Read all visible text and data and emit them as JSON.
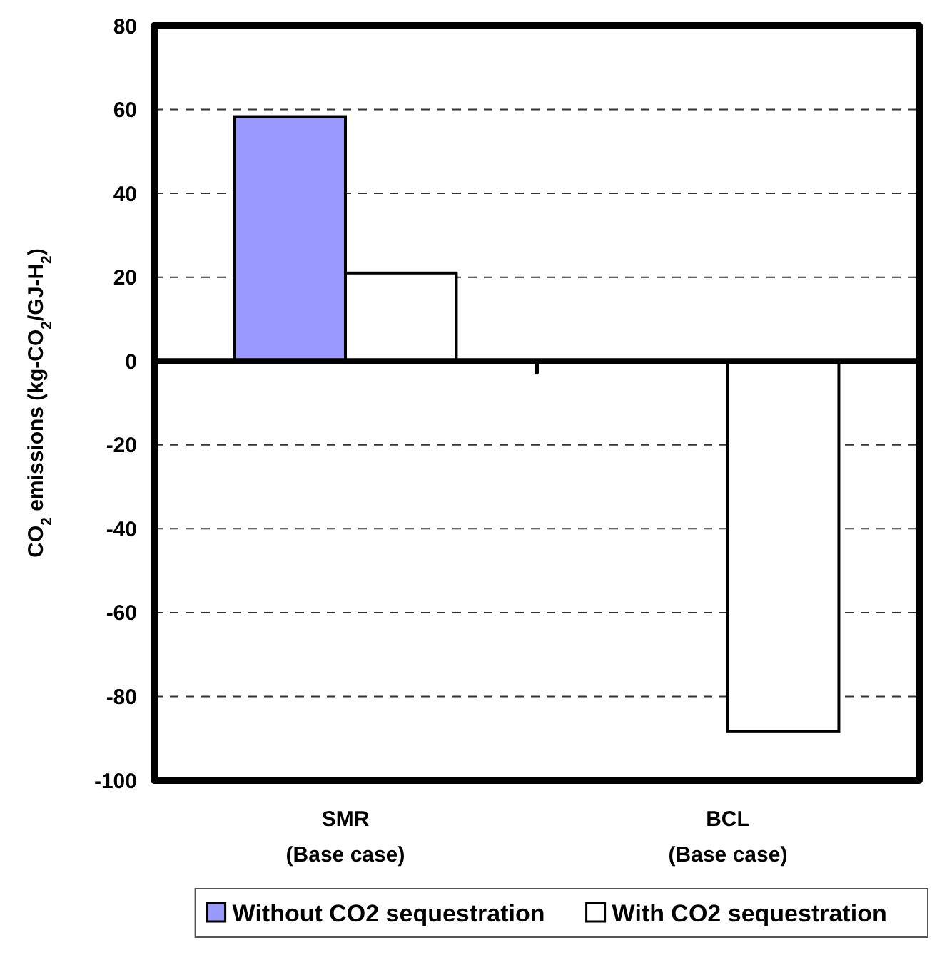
{
  "chart_data": {
    "type": "bar",
    "ylabel": "CO$_{2}$ emissions (kg-CO$_{2}$/GJ-H$_{2}$)",
    "categories": [
      "SMR\n(Base case)",
      "BCL\n(Base case)"
    ],
    "series": [
      {
        "name": "Without CO2 sequestration",
        "color": "#9999ff",
        "values": [
          58.3,
          null
        ]
      },
      {
        "name": "With CO2 sequestration",
        "color": "#ffffff",
        "values": [
          21,
          -88.4
        ]
      }
    ],
    "ylim": [
      -100,
      80
    ],
    "yticks": [
      -100,
      -80,
      -60,
      -40,
      -20,
      0,
      20,
      40,
      60,
      80
    ],
    "grid": "y",
    "legend": "bottom"
  }
}
